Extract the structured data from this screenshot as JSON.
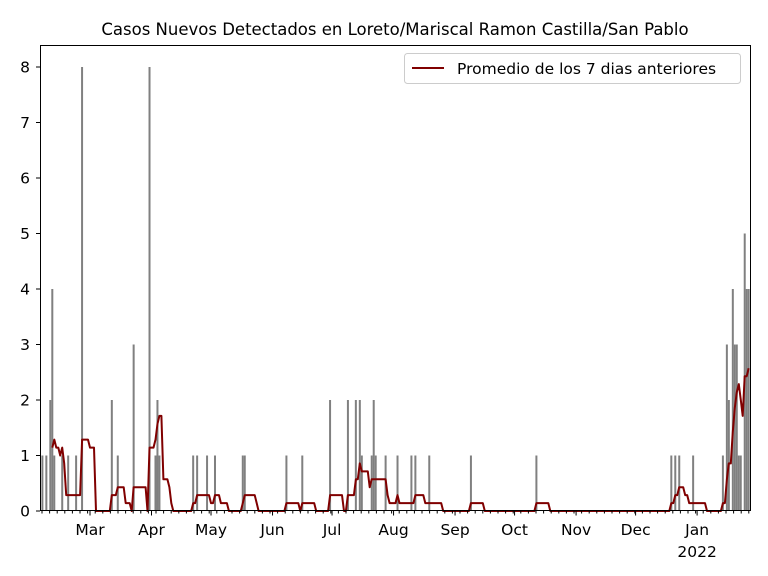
{
  "chart_data": {
    "type": "bar+line",
    "title": "Casos Nuevos Detectados en Loreto/Mariscal Ramon Castilla/San Pablo",
    "xlabel": "",
    "ylabel": "",
    "ylim": [
      0,
      8.4
    ],
    "date_range": [
      "2021-02-04",
      "2022-01-27"
    ],
    "x_ticks": [
      {
        "date": "2021-03-01",
        "label": "Mar"
      },
      {
        "date": "2021-04-01",
        "label": "Apr"
      },
      {
        "date": "2021-05-01",
        "label": "May"
      },
      {
        "date": "2021-06-01",
        "label": "Jun"
      },
      {
        "date": "2021-07-01",
        "label": "Jul"
      },
      {
        "date": "2021-08-01",
        "label": "Aug"
      },
      {
        "date": "2021-09-01",
        "label": "Sep"
      },
      {
        "date": "2021-10-01",
        "label": "Oct"
      },
      {
        "date": "2021-11-01",
        "label": "Nov"
      },
      {
        "date": "2021-12-01",
        "label": "Dec"
      },
      {
        "date": "2022-01-01",
        "label": "Jan",
        "sublabel": "2022"
      }
    ],
    "y_ticks": [
      "0",
      "1",
      "2",
      "3",
      "4",
      "5",
      "6",
      "7",
      "8"
    ],
    "bar_color": "#808080",
    "line_color": "#800000",
    "legend": {
      "label": "Promedio de los 7 dias anteriores",
      "placement": "top-right"
    },
    "daily_cases_nonzero": [
      [
        "2021-02-05",
        1
      ],
      [
        "2021-02-07",
        1
      ],
      [
        "2021-02-09",
        2
      ],
      [
        "2021-02-10",
        4
      ],
      [
        "2021-02-11",
        1
      ],
      [
        "2021-02-15",
        1
      ],
      [
        "2021-02-18",
        1
      ],
      [
        "2021-02-22",
        1
      ],
      [
        "2021-02-25",
        8
      ],
      [
        "2021-03-12",
        2
      ],
      [
        "2021-03-15",
        1
      ],
      [
        "2021-03-23",
        3
      ],
      [
        "2021-03-31",
        8
      ],
      [
        "2021-04-03",
        1
      ],
      [
        "2021-04-04",
        2
      ],
      [
        "2021-04-05",
        1
      ],
      [
        "2021-04-22",
        1
      ],
      [
        "2021-04-24",
        1
      ],
      [
        "2021-04-29",
        1
      ],
      [
        "2021-05-03",
        1
      ],
      [
        "2021-05-17",
        1
      ],
      [
        "2021-05-18",
        1
      ],
      [
        "2021-06-08",
        1
      ],
      [
        "2021-06-16",
        1
      ],
      [
        "2021-06-30",
        2
      ],
      [
        "2021-07-09",
        2
      ],
      [
        "2021-07-13",
        2
      ],
      [
        "2021-07-15",
        2
      ],
      [
        "2021-07-16",
        1
      ],
      [
        "2021-07-21",
        1
      ],
      [
        "2021-07-22",
        2
      ],
      [
        "2021-07-23",
        1
      ],
      [
        "2021-07-28",
        1
      ],
      [
        "2021-08-03",
        1
      ],
      [
        "2021-08-10",
        1
      ],
      [
        "2021-08-12",
        1
      ],
      [
        "2021-08-19",
        1
      ],
      [
        "2021-09-09",
        1
      ],
      [
        "2021-10-12",
        1
      ],
      [
        "2021-12-19",
        1
      ],
      [
        "2021-12-21",
        1
      ],
      [
        "2021-12-23",
        1
      ],
      [
        "2021-12-30",
        1
      ],
      [
        "2022-01-14",
        1
      ],
      [
        "2022-01-16",
        3
      ],
      [
        "2022-01-17",
        2
      ],
      [
        "2022-01-19",
        4
      ],
      [
        "2022-01-20",
        3
      ],
      [
        "2022-01-21",
        3
      ],
      [
        "2022-01-22",
        1
      ],
      [
        "2022-01-23",
        1
      ],
      [
        "2022-01-25",
        5
      ],
      [
        "2022-01-26",
        4
      ],
      [
        "2022-01-27",
        4
      ]
    ],
    "rolling_window_days": 7
  }
}
